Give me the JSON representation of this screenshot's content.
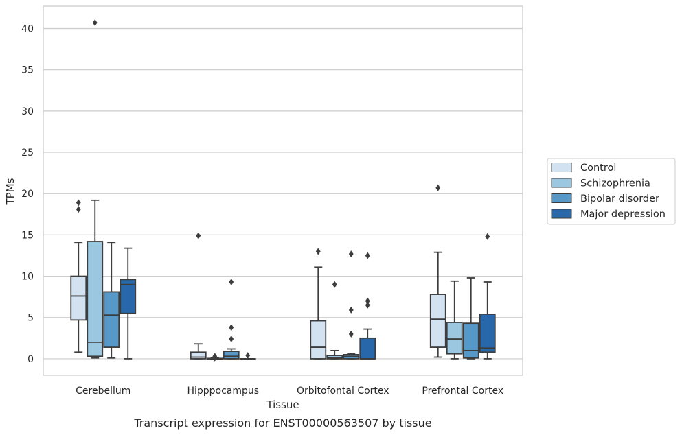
{
  "chart_data": {
    "type": "box",
    "xlabel": "Tissue",
    "ylabel": "TPMs",
    "caption": "Transcript expression for ENST00000563507 by tissue",
    "categories": [
      "Cerebellum",
      "Hipppocampus",
      "Orbitofontal Cortex",
      "Prefrontal Cortex"
    ],
    "ylim": [
      -2,
      42.7
    ],
    "yticks": [
      0,
      5,
      10,
      15,
      20,
      25,
      30,
      35,
      40
    ],
    "grid": true,
    "legend": {
      "placement": "right",
      "entries": [
        "Control",
        "Schizophrenia",
        "Bipolar disorder",
        "Major depression"
      ]
    },
    "colors": {
      "Control": "#d2e2f1",
      "Schizophrenia": "#9cc7e0",
      "Bipolar disorder": "#5698c8",
      "Major depression": "#2767aa"
    },
    "series": [
      {
        "name": "Control",
        "boxes": [
          {
            "q1": 4.7,
            "median": 7.6,
            "q3": 10.0,
            "whislo": 0.8,
            "whishi": 14.1,
            "fliers": [
              18.1,
              18.9
            ]
          },
          {
            "q1": 0.0,
            "median": 0.2,
            "q3": 0.8,
            "whislo": 0.0,
            "whishi": 1.8,
            "fliers": [
              14.9
            ]
          },
          {
            "q1": 0.0,
            "median": 1.4,
            "q3": 4.6,
            "whislo": 0.0,
            "whishi": 11.1,
            "fliers": [
              13.0
            ]
          },
          {
            "q1": 1.4,
            "median": 4.8,
            "q3": 7.8,
            "whislo": 0.2,
            "whishi": 12.9,
            "fliers": [
              20.7
            ]
          }
        ]
      },
      {
        "name": "Schizophrenia",
        "boxes": [
          {
            "q1": 0.3,
            "median": 2.0,
            "q3": 14.2,
            "whislo": 0.1,
            "whishi": 19.2,
            "fliers": [
              40.7
            ]
          },
          {
            "q1": 0.0,
            "median": 0.0,
            "q3": 0.05,
            "whislo": 0.0,
            "whishi": 0.1,
            "fliers": [
              0.3,
              0.1
            ]
          },
          {
            "q1": 0.0,
            "median": 0.1,
            "q3": 0.4,
            "whislo": 0.0,
            "whishi": 1.0,
            "fliers": [
              9.0
            ]
          },
          {
            "q1": 0.6,
            "median": 2.4,
            "q3": 4.4,
            "whislo": 0.0,
            "whishi": 9.4,
            "fliers": []
          }
        ]
      },
      {
        "name": "Bipolar disorder",
        "boxes": [
          {
            "q1": 1.4,
            "median": 5.3,
            "q3": 8.1,
            "whislo": 0.1,
            "whishi": 14.1,
            "fliers": []
          },
          {
            "q1": 0.0,
            "median": 0.3,
            "q3": 0.9,
            "whislo": 0.0,
            "whishi": 1.2,
            "fliers": [
              9.3,
              3.8,
              2.4
            ]
          },
          {
            "q1": 0.0,
            "median": 0.3,
            "q3": 0.5,
            "whislo": 0.0,
            "whishi": 0.6,
            "fliers": [
              12.7,
              5.9,
              3.0
            ]
          },
          {
            "q1": 0.1,
            "median": 1.0,
            "q3": 4.3,
            "whislo": 0.0,
            "whishi": 9.8,
            "fliers": []
          }
        ]
      },
      {
        "name": "Major depression",
        "boxes": [
          {
            "q1": 5.5,
            "median": 9.0,
            "q3": 9.6,
            "whislo": 0.0,
            "whishi": 13.4,
            "fliers": []
          },
          {
            "q1": 0.0,
            "median": 0.0,
            "q3": 0.0,
            "whislo": 0.0,
            "whishi": 0.0,
            "fliers": [
              0.4
            ]
          },
          {
            "q1": 0.0,
            "median": 0.0,
            "q3": 2.5,
            "whislo": 0.0,
            "whishi": 3.6,
            "fliers": [
              12.5,
              7.0,
              6.5
            ]
          },
          {
            "q1": 0.8,
            "median": 1.3,
            "q3": 5.4,
            "whislo": 0.0,
            "whishi": 9.3,
            "fliers": [
              14.8
            ]
          }
        ]
      }
    ]
  }
}
